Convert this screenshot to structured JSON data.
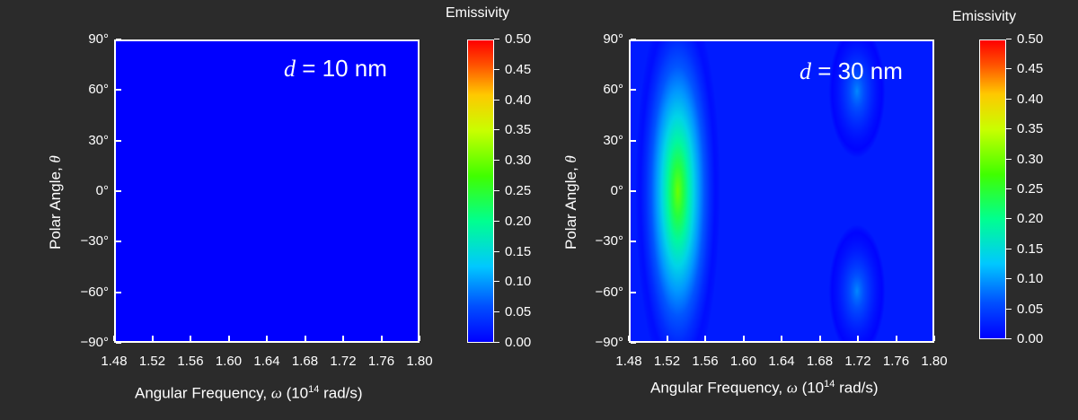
{
  "chart_data": [
    {
      "type": "heatmap",
      "annotation": {
        "prefix": "d",
        "text": " = 10 nm"
      },
      "xlabel": {
        "main": "Angular Frequency, ",
        "symbol": "ω",
        "pre": " (10",
        "sup": "14",
        "post": " rad/s)"
      },
      "ylabel": {
        "main": "Polar Angle, ",
        "symbol": "θ"
      },
      "x_ticks": [
        "1.48",
        "1.52",
        "1.56",
        "1.60",
        "1.64",
        "1.68",
        "1.72",
        "1.76",
        "1.80"
      ],
      "y_ticks": [
        "90°",
        "60°",
        "30°",
        "0°",
        "−30°",
        "−60°",
        "−90°"
      ],
      "xlim": [
        1.48,
        1.8
      ],
      "ylim": [
        -90,
        90
      ],
      "colorbar": {
        "title": "Emissivity",
        "ticks": [
          "0.50",
          "0.45",
          "0.40",
          "0.35",
          "0.30",
          "0.25",
          "0.20",
          "0.15",
          "0.10",
          "0.05",
          "0.00"
        ],
        "range": [
          0,
          0.5
        ]
      },
      "features": [],
      "background_value": 0.0
    },
    {
      "type": "heatmap",
      "annotation": {
        "prefix": "d",
        "text": " = 30 nm"
      },
      "xlabel": {
        "main": "Angular Frequency, ",
        "symbol": "ω",
        "pre": " (10",
        "sup": "14",
        "post": " rad/s)"
      },
      "ylabel": {
        "main": "Polar Angle, ",
        "symbol": "θ"
      },
      "x_ticks": [
        "1.48",
        "1.52",
        "1.56",
        "1.60",
        "1.64",
        "1.68",
        "1.72",
        "1.76",
        "1.80"
      ],
      "y_ticks": [
        "90°",
        "60°",
        "30°",
        "0°",
        "−30°",
        "−60°",
        "−90°"
      ],
      "xlim": [
        1.48,
        1.8
      ],
      "ylim": [
        -90,
        90
      ],
      "colorbar": {
        "title": "Emissivity",
        "ticks": [
          "0.50",
          "0.45",
          "0.40",
          "0.35",
          "0.30",
          "0.25",
          "0.20",
          "0.15",
          "0.10",
          "0.05",
          "0.00"
        ],
        "range": [
          0,
          0.5
        ]
      },
      "features": [
        {
          "x": 1.53,
          "y": 0,
          "x_halfwidth": 0.045,
          "y_halfwidth": 120,
          "peak": 0.3
        },
        {
          "x": 1.72,
          "y": 60,
          "x_halfwidth": 0.03,
          "y_halfwidth": 40,
          "peak": 0.09
        },
        {
          "x": 1.72,
          "y": -60,
          "x_halfwidth": 0.03,
          "y_halfwidth": 40,
          "peak": 0.09
        }
      ],
      "background_value": 0.02
    }
  ]
}
